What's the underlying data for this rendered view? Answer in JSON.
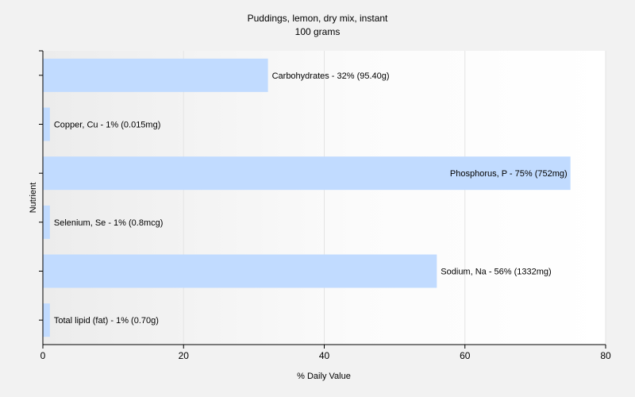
{
  "chart_data": {
    "type": "bar",
    "orientation": "horizontal",
    "title": "Puddings, lemon, dry mix, instant",
    "subtitle": "100 grams",
    "xlabel": "% Daily Value",
    "ylabel": "Nutrient",
    "xlim": [
      0,
      80
    ],
    "xticks": [
      "0",
      "20",
      "40",
      "60",
      "80"
    ],
    "grid": true,
    "categories": [
      "Carbohydrates",
      "Copper, Cu",
      "Phosphorus, P",
      "Selenium, Se",
      "Sodium, Na",
      "Total lipid (fat)"
    ],
    "values": [
      32,
      1,
      75,
      1,
      56,
      1
    ],
    "labels": [
      "Carbohydrates - 32% (95.40g)",
      "Copper, Cu - 1% (0.015mg)",
      "Phosphorus, P - 75% (752mg)",
      "Selenium, Se - 1% (0.8mcg)",
      "Sodium, Na - 56% (1332mg)",
      "Total lipid (fat) - 1% (0.70g)"
    ],
    "colors": {
      "bar": "#c1dbff",
      "plot_background": "#ffffff",
      "grid": "#e4e4e4",
      "axis": "#000000"
    }
  }
}
